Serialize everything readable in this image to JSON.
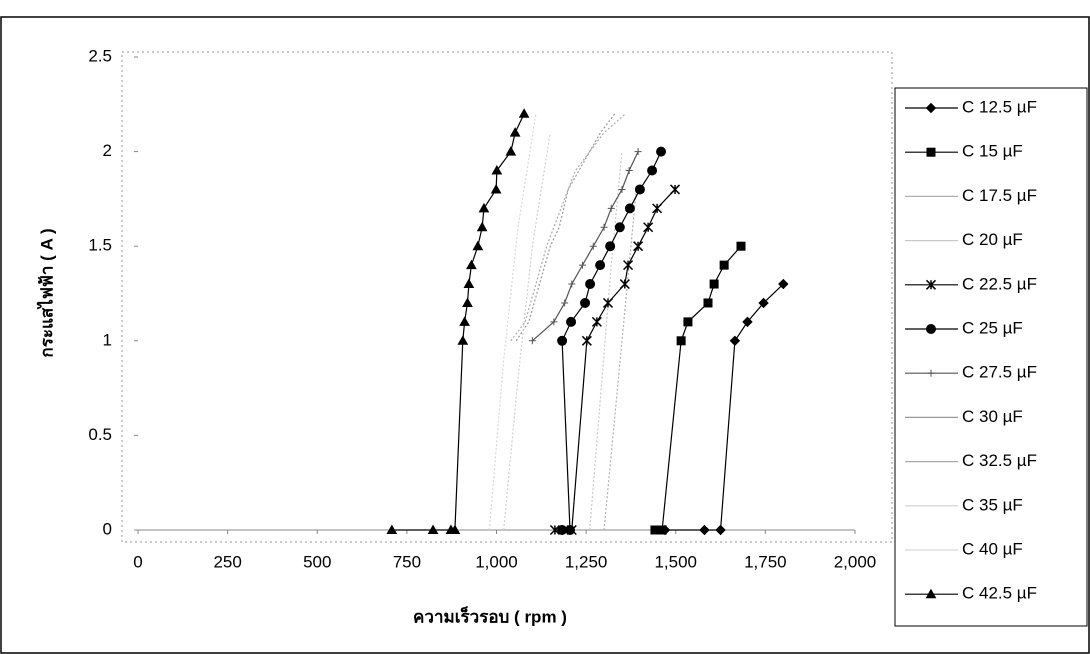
{
  "chart_data": {
    "type": "line",
    "x_label": "ความเร็วรอบ ( rpm )",
    "y_label": "กระแสไฟฟ้า ( A )",
    "xlim": [
      0,
      2000
    ],
    "xticks": [
      0,
      250,
      500,
      750,
      {
        "value": 1000,
        "label": "1,000"
      },
      {
        "value": 1250,
        "label": "1,250"
      },
      {
        "value": 1500,
        "label": "1,500"
      },
      {
        "value": 1750,
        "label": "1,750"
      },
      {
        "value": 2000,
        "label": "2,000"
      }
    ],
    "ylim": [
      0,
      2.5
    ],
    "yticks": [
      0,
      0.5,
      1,
      1.5,
      2,
      2.5
    ],
    "grid": false,
    "legend": "right",
    "series": [
      {
        "name": "C 12.5 µF",
        "color": "#000000",
        "marker": "diamond",
        "x": [
          1470,
          1580,
          1625,
          1665,
          1700,
          1745,
          1800
        ],
        "values": [
          0,
          0,
          0,
          1.0,
          1.1,
          1.2,
          1.3
        ]
      },
      {
        "name": "C 15 µF",
        "color": "#000000",
        "marker": "square",
        "x": [
          1442,
          1462,
          1515,
          1534,
          1590,
          1607,
          1635,
          1682
        ],
        "values": [
          0,
          0,
          1.0,
          1.1,
          1.2,
          1.3,
          1.4,
          1.5
        ]
      },
      {
        "name": "C 17.5 µF",
        "color": "#b0b0b0",
        "marker": "none",
        "x": [
          1300,
          1330,
          1360,
          1390
        ],
        "values": [
          0,
          0.6,
          1.2,
          1.8
        ]
      },
      {
        "name": "C 20 µF",
        "color": "#c8c8c8",
        "marker": "none",
        "x": [
          1260,
          1290,
          1320,
          1350
        ],
        "values": [
          0,
          0.7,
          1.4,
          2.0
        ]
      },
      {
        "name": "C 22.5 µF",
        "color": "#000000",
        "marker": "star",
        "x": [
          1163,
          1210,
          1252,
          1280,
          1311,
          1358,
          1367,
          1395,
          1423,
          1448,
          1498
        ],
        "values": [
          0,
          0,
          1.0,
          1.1,
          1.2,
          1.3,
          1.4,
          1.5,
          1.6,
          1.7,
          1.8
        ]
      },
      {
        "name": "C 25 µF",
        "color": "#000000",
        "marker": "circle",
        "x": [
          1183,
          1205,
          1183,
          1208,
          1247,
          1261,
          1289,
          1317,
          1344,
          1372,
          1400,
          1434,
          1459
        ],
        "values": [
          0,
          0,
          1.0,
          1.1,
          1.2,
          1.3,
          1.4,
          1.5,
          1.6,
          1.7,
          1.8,
          1.9,
          2.0
        ]
      },
      {
        "name": "C 27.5 µF",
        "color": "#555555",
        "marker": "plus",
        "x": [
          1100,
          1160,
          1190,
          1210,
          1240,
          1270,
          1300,
          1320,
          1350,
          1370,
          1395
        ],
        "values": [
          1.0,
          1.1,
          1.2,
          1.3,
          1.4,
          1.5,
          1.6,
          1.7,
          1.8,
          1.9,
          2.0
        ]
      },
      {
        "name": "C 30 µF",
        "color": "#999999",
        "marker": "none",
        "x": [
          1055,
          1090,
          1120,
          1150,
          1175,
          1200,
          1230,
          1260,
          1290,
          1330
        ],
        "values": [
          1.0,
          1.1,
          1.3,
          1.5,
          1.6,
          1.8,
          1.9,
          2.0,
          2.1,
          2.2
        ]
      },
      {
        "name": "C 32.5 µF",
        "color": "#aaaaaa",
        "marker": "none",
        "x": [
          1040,
          1080,
          1110,
          1140,
          1180,
          1220,
          1260,
          1300,
          1360
        ],
        "values": [
          1.0,
          1.1,
          1.3,
          1.5,
          1.7,
          1.9,
          2.0,
          2.1,
          2.2
        ]
      },
      {
        "name": "C 35 µF",
        "color": "#cfcfcf",
        "marker": "none",
        "x": [
          1020,
          1060,
          1100,
          1150
        ],
        "values": [
          0,
          0.8,
          1.5,
          2.1
        ]
      },
      {
        "name": "C 40 µF",
        "color": "#d8d8d8",
        "marker": "none",
        "x": [
          980,
          1020,
          1060,
          1110
        ],
        "values": [
          0,
          0.9,
          1.6,
          2.2
        ]
      },
      {
        "name": "C 42.5 µF",
        "color": "#000000",
        "marker": "triangle",
        "x": [
          708,
          823,
          873,
          884,
          906,
          911,
          919,
          923,
          930,
          948,
          960,
          965,
          999,
          1001,
          1040,
          1052,
          1077
        ],
        "values": [
          0,
          0,
          0,
          0,
          1.0,
          1.1,
          1.2,
          1.3,
          1.4,
          1.5,
          1.6,
          1.7,
          1.8,
          1.9,
          2.0,
          2.1,
          2.2
        ]
      }
    ]
  }
}
